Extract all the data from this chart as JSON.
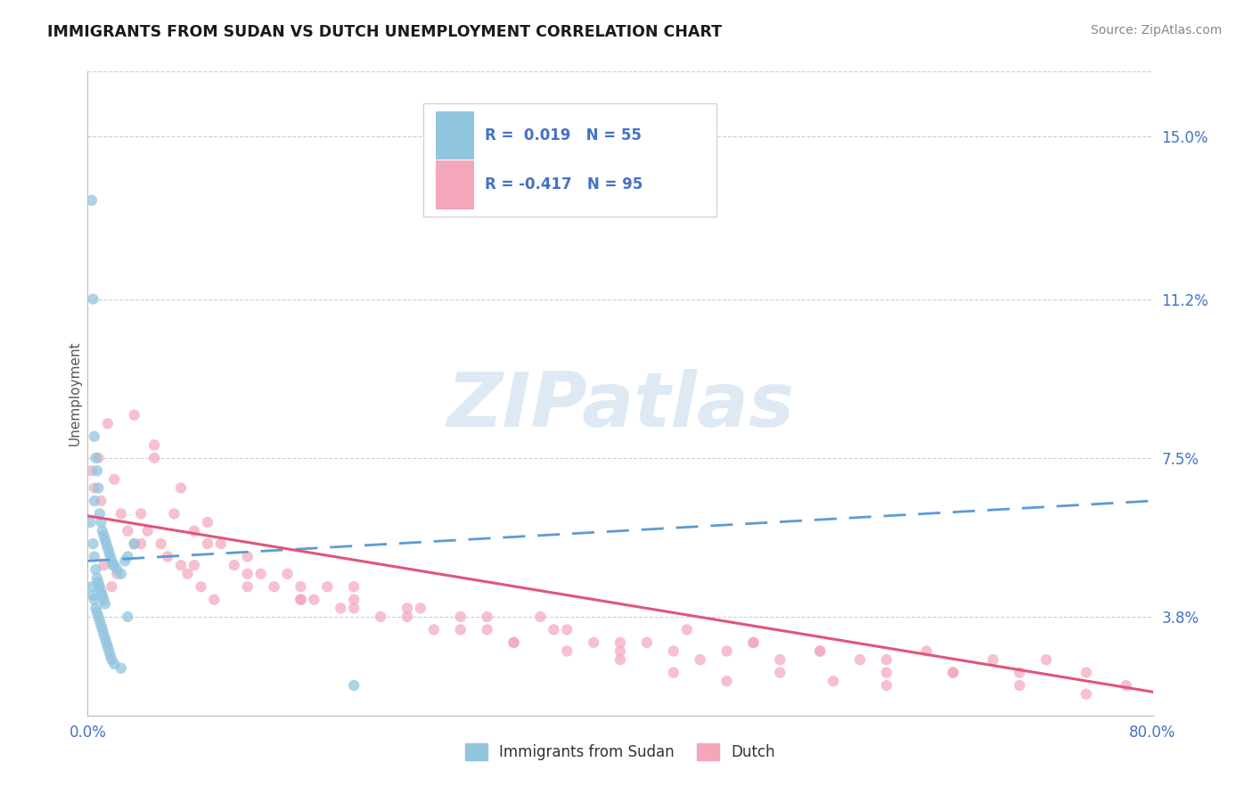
{
  "title": "IMMIGRANTS FROM SUDAN VS DUTCH UNEMPLOYMENT CORRELATION CHART",
  "source_text": "Source: ZipAtlas.com",
  "ylabel": "Unemployment",
  "right_yticks": [
    3.8,
    7.5,
    11.2,
    15.0
  ],
  "right_ytick_labels": [
    "3.8%",
    "7.5%",
    "11.2%",
    "15.0%"
  ],
  "xlim": [
    0.0,
    80.0
  ],
  "ylim": [
    1.5,
    16.5
  ],
  "legend_label1": "Immigrants from Sudan",
  "legend_label2": "Dutch",
  "color_blue": "#92c5de",
  "color_pink": "#f4a6bb",
  "color_blue_line": "#5b9bd5",
  "color_pink_line": "#e05678",
  "color_axis_labels": "#4472c4",
  "background_color": "#ffffff",
  "grid_color": "#d0d0d0",
  "watermark_text": "ZIPatlas",
  "blue_trend_start": 5.1,
  "blue_trend_end": 6.5,
  "pink_trend_start": 6.15,
  "pink_trend_end": 2.05,
  "blue_scatter_x": [
    0.3,
    0.4,
    0.5,
    0.6,
    0.7,
    0.8,
    0.9,
    1.0,
    1.1,
    1.2,
    1.3,
    1.4,
    1.5,
    1.6,
    1.7,
    1.8,
    1.9,
    2.0,
    2.2,
    2.5,
    2.8,
    3.0,
    3.5,
    0.2,
    0.4,
    0.5,
    0.6,
    0.7,
    0.8,
    0.9,
    1.0,
    1.1,
    1.2,
    1.3,
    0.3,
    0.4,
    0.5,
    0.6,
    0.7,
    0.8,
    0.9,
    1.0,
    1.1,
    1.2,
    1.3,
    1.4,
    1.5,
    1.6,
    1.7,
    1.8,
    2.0,
    2.5,
    3.0,
    20.0,
    0.5
  ],
  "blue_scatter_y": [
    13.5,
    11.2,
    8.0,
    7.5,
    7.2,
    6.8,
    6.2,
    6.0,
    5.8,
    5.7,
    5.6,
    5.5,
    5.4,
    5.3,
    5.2,
    5.1,
    5.0,
    5.0,
    4.9,
    4.8,
    5.1,
    5.2,
    5.5,
    6.0,
    5.5,
    5.2,
    4.9,
    4.7,
    4.6,
    4.5,
    4.4,
    4.3,
    4.2,
    4.1,
    4.5,
    4.3,
    4.2,
    4.0,
    3.9,
    3.8,
    3.7,
    3.6,
    3.5,
    3.4,
    3.3,
    3.2,
    3.1,
    3.0,
    2.9,
    2.8,
    2.7,
    2.6,
    3.8,
    2.2,
    6.5
  ],
  "pink_scatter_x": [
    0.3,
    0.5,
    0.8,
    1.0,
    1.5,
    2.0,
    2.5,
    3.0,
    3.5,
    4.0,
    4.5,
    5.0,
    5.5,
    6.0,
    6.5,
    7.0,
    7.5,
    8.0,
    8.5,
    9.0,
    9.5,
    10.0,
    11.0,
    12.0,
    13.0,
    14.0,
    15.0,
    16.0,
    17.0,
    18.0,
    19.0,
    20.0,
    22.0,
    24.0,
    26.0,
    28.0,
    30.0,
    32.0,
    34.0,
    36.0,
    38.0,
    40.0,
    42.0,
    44.0,
    46.0,
    48.0,
    50.0,
    52.0,
    55.0,
    58.0,
    60.0,
    63.0,
    65.0,
    68.0,
    70.0,
    72.0,
    75.0,
    78.0,
    1.2,
    1.8,
    2.2,
    3.5,
    5.0,
    7.0,
    9.0,
    12.0,
    16.0,
    20.0,
    25.0,
    30.0,
    35.0,
    40.0,
    45.0,
    50.0,
    55.0,
    60.0,
    65.0,
    70.0,
    75.0,
    4.0,
    8.0,
    12.0,
    16.0,
    20.0,
    24.0,
    28.0,
    32.0,
    36.0,
    40.0,
    44.0,
    48.0,
    52.0,
    56.0,
    60.0
  ],
  "pink_scatter_y": [
    7.2,
    6.8,
    7.5,
    6.5,
    8.3,
    7.0,
    6.2,
    5.8,
    8.5,
    6.2,
    5.8,
    7.5,
    5.5,
    5.2,
    6.2,
    5.0,
    4.8,
    5.8,
    4.5,
    5.5,
    4.2,
    5.5,
    5.0,
    5.2,
    4.8,
    4.5,
    4.8,
    4.5,
    4.2,
    4.5,
    4.0,
    4.2,
    3.8,
    4.0,
    3.5,
    3.8,
    3.5,
    3.2,
    3.8,
    3.5,
    3.2,
    3.0,
    3.2,
    3.0,
    2.8,
    3.0,
    3.2,
    2.8,
    3.0,
    2.8,
    2.5,
    3.0,
    2.5,
    2.8,
    2.5,
    2.8,
    2.5,
    2.2,
    5.0,
    4.5,
    4.8,
    5.5,
    7.8,
    6.8,
    6.0,
    4.8,
    4.2,
    4.5,
    4.0,
    3.8,
    3.5,
    3.2,
    3.5,
    3.2,
    3.0,
    2.8,
    2.5,
    2.2,
    2.0,
    5.5,
    5.0,
    4.5,
    4.2,
    4.0,
    3.8,
    3.5,
    3.2,
    3.0,
    2.8,
    2.5,
    2.3,
    2.5,
    2.3,
    2.2
  ]
}
